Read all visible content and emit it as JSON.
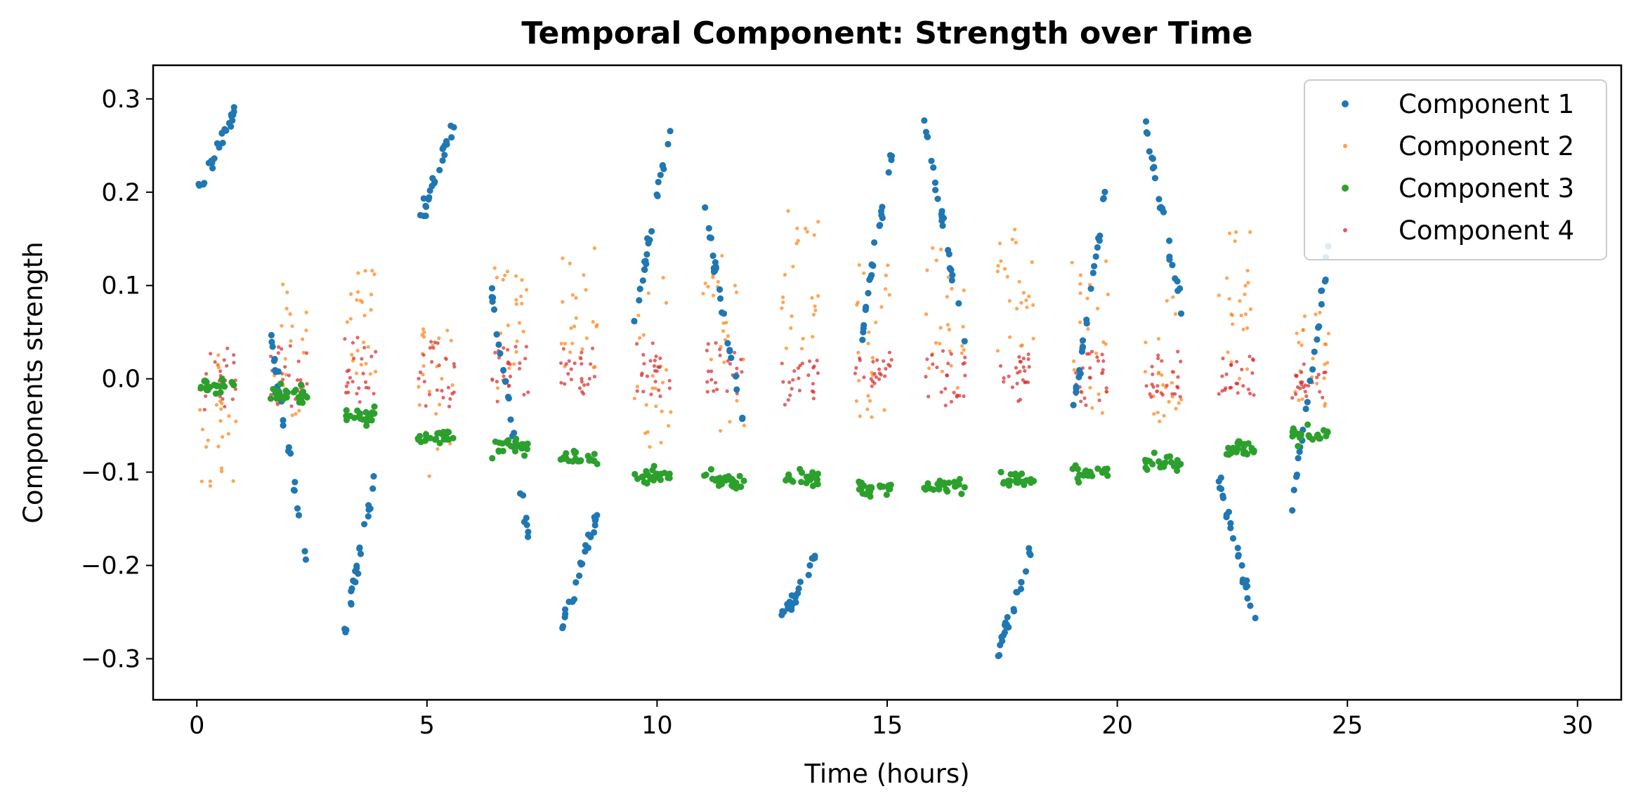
{
  "chart_data": {
    "type": "scatter",
    "title": "Temporal Component: Strength over Time",
    "xlabel": "Time (hours)",
    "ylabel": "Components strength",
    "xlim": [
      -0.95,
      30.95
    ],
    "ylim": [
      -0.344,
      0.336
    ],
    "xticks": [
      0,
      5,
      10,
      15,
      20,
      25,
      30
    ],
    "xtick_labels": [
      "0",
      "5",
      "10",
      "15",
      "20",
      "25",
      "30"
    ],
    "yticks": [
      -0.3,
      -0.2,
      -0.1,
      0.0,
      0.1,
      0.2,
      0.3
    ],
    "ytick_labels": [
      "−0.3",
      "−0.2",
      "−0.1",
      "0.0",
      "0.1",
      "0.2",
      "0.3"
    ],
    "grid": false,
    "legend_position": "top-right",
    "series": [
      {
        "name": "Component 1",
        "color": "#1f77b4",
        "marker_size": "large",
        "segments": [
          {
            "x": [
              0.0,
              0.85
            ],
            "y": [
              0.2,
              0.29
            ]
          },
          {
            "x": [
              1.6,
              2.4
            ],
            "y": [
              0.045,
              -0.205
            ]
          },
          {
            "x": [
              3.2,
              3.9
            ],
            "y": [
              -0.275,
              -0.095
            ]
          },
          {
            "x": [
              4.8,
              5.6
            ],
            "y": [
              0.162,
              0.277
            ]
          },
          {
            "x": [
              6.4,
              7.2
            ],
            "y": [
              0.097,
              -0.168
            ]
          },
          {
            "x": [
              7.9,
              8.7
            ],
            "y": [
              -0.278,
              -0.142
            ]
          },
          {
            "x": [
              9.5,
              10.3
            ],
            "y": [
              0.065,
              0.272
            ]
          },
          {
            "x": [
              11.0,
              11.9
            ],
            "y": [
              0.193,
              -0.058
            ]
          },
          {
            "x": [
              12.7,
              13.5
            ],
            "y": [
              -0.258,
              -0.188
            ]
          },
          {
            "x": [
              14.3,
              15.1
            ],
            "y": [
              0.005,
              0.242
            ]
          },
          {
            "x": [
              15.8,
              16.7
            ],
            "y": [
              0.282,
              0.028
            ]
          },
          {
            "x": [
              17.4,
              18.2
            ],
            "y": [
              -0.29,
              -0.175
            ]
          },
          {
            "x": [
              19.0,
              19.8
            ],
            "y": [
              -0.055,
              0.225
            ]
          },
          {
            "x": [
              20.6,
              21.4
            ],
            "y": [
              0.275,
              0.075
            ]
          },
          {
            "x": [
              22.2,
              23.0
            ],
            "y": [
              -0.1,
              -0.265
            ]
          },
          {
            "x": [
              23.8,
              24.6
            ],
            "y": [
              -0.14,
              0.143
            ]
          }
        ]
      },
      {
        "name": "Component 2",
        "color": "#ff7f0e",
        "marker_size": "small",
        "clusters": [
          {
            "x": [
              0.0,
              0.85
            ],
            "y": [
              -0.13,
              0.03
            ]
          },
          {
            "x": [
              1.6,
              2.4
            ],
            "y": [
              -0.04,
              0.105
            ]
          },
          {
            "x": [
              3.2,
              3.9
            ],
            "y": [
              0.0,
              0.128
            ]
          },
          {
            "x": [
              4.8,
              5.6
            ],
            "y": [
              -0.105,
              0.055
            ]
          },
          {
            "x": [
              6.4,
              7.2
            ],
            "y": [
              -0.01,
              0.132
            ]
          },
          {
            "x": [
              7.9,
              8.7
            ],
            "y": [
              0.01,
              0.146
            ]
          },
          {
            "x": [
              9.5,
              10.3
            ],
            "y": [
              -0.075,
              0.11
            ]
          },
          {
            "x": [
              11.0,
              11.9
            ],
            "y": [
              -0.06,
              0.15
            ]
          },
          {
            "x": [
              12.7,
              13.5
            ],
            "y": [
              0.03,
              0.181
            ]
          },
          {
            "x": [
              14.3,
              15.1
            ],
            "y": [
              -0.06,
              0.125
            ]
          },
          {
            "x": [
              15.8,
              16.7
            ],
            "y": [
              -0.01,
              0.145
            ]
          },
          {
            "x": [
              17.4,
              18.2
            ],
            "y": [
              0.02,
              0.175
            ]
          },
          {
            "x": [
              19.0,
              19.8
            ],
            "y": [
              -0.04,
              0.135
            ]
          },
          {
            "x": [
              20.6,
              21.4
            ],
            "y": [
              -0.05,
              0.09
            ]
          },
          {
            "x": [
              22.2,
              23.0
            ],
            "y": [
              0.0,
              0.162
            ]
          },
          {
            "x": [
              23.8,
              24.6
            ],
            "y": [
              -0.03,
              0.075
            ]
          }
        ]
      },
      {
        "name": "Component 3",
        "color": "#2ca02c",
        "marker_size": "large",
        "clusters": [
          {
            "x": [
              0.0,
              0.85
            ],
            "y": [
              -0.008
            ]
          },
          {
            "x": [
              1.6,
              2.4
            ],
            "y": [
              -0.018
            ]
          },
          {
            "x": [
              3.2,
              3.9
            ],
            "y": [
              -0.04
            ]
          },
          {
            "x": [
              4.8,
              5.6
            ],
            "y": [
              -0.062
            ]
          },
          {
            "x": [
              6.4,
              7.2
            ],
            "y": [
              -0.072
            ]
          },
          {
            "x": [
              7.9,
              8.7
            ],
            "y": [
              -0.085
            ]
          },
          {
            "x": [
              9.5,
              10.3
            ],
            "y": [
              -0.103
            ]
          },
          {
            "x": [
              11.0,
              11.9
            ],
            "y": [
              -0.108
            ]
          },
          {
            "x": [
              12.7,
              13.5
            ],
            "y": [
              -0.108
            ]
          },
          {
            "x": [
              14.3,
              15.1
            ],
            "y": [
              -0.118
            ]
          },
          {
            "x": [
              15.8,
              16.7
            ],
            "y": [
              -0.115
            ]
          },
          {
            "x": [
              17.4,
              18.2
            ],
            "y": [
              -0.108
            ]
          },
          {
            "x": [
              19.0,
              19.8
            ],
            "y": [
              -0.1
            ]
          },
          {
            "x": [
              20.6,
              21.4
            ],
            "y": [
              -0.092
            ]
          },
          {
            "x": [
              22.2,
              23.0
            ],
            "y": [
              -0.075
            ]
          },
          {
            "x": [
              23.8,
              24.6
            ],
            "y": [
              -0.06
            ]
          }
        ]
      },
      {
        "name": "Component 4",
        "color": "#d62728",
        "marker_size": "small",
        "clusters": [
          {
            "x": [
              0.0,
              0.85
            ],
            "y": [
              -0.035,
              0.035
            ]
          },
          {
            "x": [
              1.6,
              2.4
            ],
            "y": [
              -0.035,
              0.04
            ]
          },
          {
            "x": [
              3.2,
              3.9
            ],
            "y": [
              -0.03,
              0.045
            ]
          },
          {
            "x": [
              4.8,
              5.6
            ],
            "y": [
              -0.03,
              0.04
            ]
          },
          {
            "x": [
              6.4,
              7.2
            ],
            "y": [
              -0.025,
              0.035
            ]
          },
          {
            "x": [
              7.9,
              8.7
            ],
            "y": [
              -0.02,
              0.035
            ]
          },
          {
            "x": [
              9.5,
              10.3
            ],
            "y": [
              -0.02,
              0.04
            ]
          },
          {
            "x": [
              11.0,
              11.9
            ],
            "y": [
              -0.02,
              0.04
            ]
          },
          {
            "x": [
              12.7,
              13.5
            ],
            "y": [
              -0.03,
              0.02
            ]
          },
          {
            "x": [
              14.3,
              15.1
            ],
            "y": [
              -0.01,
              0.03
            ]
          },
          {
            "x": [
              15.8,
              16.7
            ],
            "y": [
              -0.03,
              0.03
            ]
          },
          {
            "x": [
              17.4,
              18.2
            ],
            "y": [
              -0.025,
              0.03
            ]
          },
          {
            "x": [
              19.0,
              19.8
            ],
            "y": [
              -0.03,
              0.03
            ]
          },
          {
            "x": [
              20.6,
              21.4
            ],
            "y": [
              -0.02,
              0.03
            ]
          },
          {
            "x": [
              22.2,
              23.0
            ],
            "y": [
              -0.02,
              0.025
            ]
          },
          {
            "x": [
              23.8,
              24.6
            ],
            "y": [
              -0.025,
              0.02
            ]
          }
        ]
      }
    ]
  }
}
